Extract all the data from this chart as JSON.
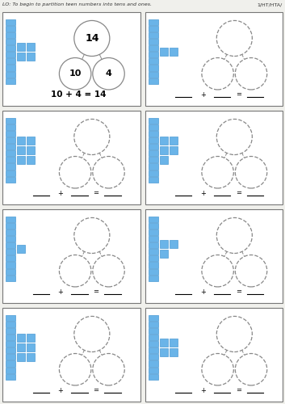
{
  "title_lo": "LO: To begin to partition teen numbers into tens and ones.",
  "title_ref": "1/HT/HTA/",
  "bg_color": "#f0f0ec",
  "cell_bg": "#ffffff",
  "blue_color": "#6ab4e8",
  "blue_border": "#4a9ad4",
  "cells": [
    {
      "col": 0,
      "row": 0,
      "tens": 1,
      "ones": 4,
      "show_number": true,
      "top_num": "14",
      "left_num": "10",
      "right_num": "4",
      "equation": "10 + 4 = 14"
    },
    {
      "col": 1,
      "row": 0,
      "tens": 1,
      "ones": 2,
      "show_number": false,
      "equation": ""
    },
    {
      "col": 0,
      "row": 1,
      "tens": 1,
      "ones": 6,
      "show_number": false,
      "equation": ""
    },
    {
      "col": 1,
      "row": 1,
      "tens": 1,
      "ones": 5,
      "show_number": false,
      "equation": ""
    },
    {
      "col": 0,
      "row": 2,
      "tens": 1,
      "ones": 1,
      "show_number": false,
      "equation": ""
    },
    {
      "col": 1,
      "row": 2,
      "tens": 1,
      "ones": 3,
      "show_number": false,
      "equation": ""
    },
    {
      "col": 0,
      "row": 3,
      "tens": 1,
      "ones": 6,
      "show_number": false,
      "equation": ""
    },
    {
      "col": 1,
      "row": 3,
      "tens": 1,
      "ones": 4,
      "show_number": false,
      "equation": ""
    }
  ]
}
